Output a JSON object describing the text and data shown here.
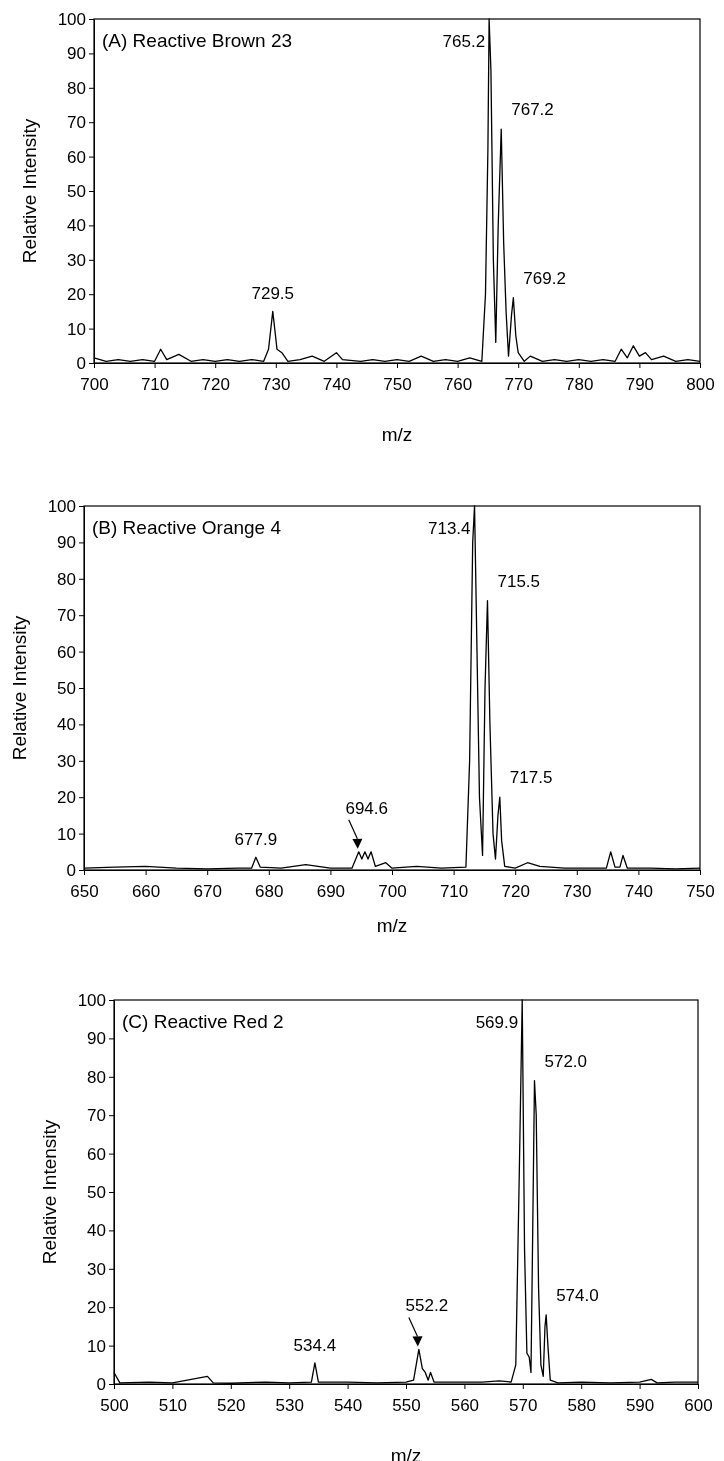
{
  "chart_data": [
    {
      "type": "line",
      "title": "(A) Reactive Brown 23",
      "xlabel": "m/z",
      "ylabel": "Relative Intensity",
      "xlim": [
        700,
        800
      ],
      "xticks": [
        700,
        710,
        720,
        730,
        740,
        750,
        760,
        770,
        780,
        790,
        800
      ],
      "ylim": [
        0,
        100
      ],
      "yticks": [
        0,
        10,
        20,
        30,
        40,
        50,
        60,
        70,
        80,
        90,
        100
      ],
      "series": [
        {
          "color": "#000000",
          "x": [
            700,
            702,
            704,
            706,
            708,
            710,
            711,
            712,
            714,
            716,
            718,
            720,
            722,
            724,
            726,
            728,
            728.8,
            729.5,
            730.2,
            731,
            732,
            734,
            736,
            738,
            740,
            741,
            744,
            746,
            748,
            750,
            752,
            754,
            756,
            758,
            760,
            762,
            764,
            764.6,
            765.0,
            765.2,
            765.5,
            765.9,
            766.3,
            766.7,
            767.2,
            767.6,
            768.0,
            768.4,
            768.9,
            769.2,
            769.6,
            770,
            771,
            772,
            774,
            776,
            778,
            780,
            782,
            784,
            786,
            787,
            788,
            789,
            790,
            791,
            792,
            794,
            796,
            798,
            800
          ],
          "values": [
            1.5,
            0.5,
            1,
            0.5,
            1,
            0.5,
            4,
            1,
            2.5,
            0.5,
            1,
            0.5,
            1,
            0.5,
            1,
            0.5,
            4,
            15,
            4,
            3,
            0.5,
            1,
            2,
            0.5,
            3,
            1,
            0.5,
            1,
            0.5,
            1,
            0.5,
            2,
            0.5,
            1,
            0.5,
            1.5,
            0.5,
            20,
            62,
            100,
            85,
            30,
            6,
            40,
            68,
            35,
            15,
            2,
            14,
            19,
            8,
            3,
            0.5,
            2,
            0.5,
            1,
            0.5,
            1,
            0.5,
            1,
            0.5,
            4,
            1.5,
            5,
            2,
            3,
            1,
            2,
            0.5,
            1,
            0.5
          ]
        }
      ],
      "annotations": [
        {
          "text": "729.5",
          "x": 729.5,
          "y": 15
        },
        {
          "text": "765.2",
          "x": 765.2,
          "y": 100
        },
        {
          "text": "767.2",
          "x": 767.2,
          "y": 68
        },
        {
          "text": "769.2",
          "x": 769.2,
          "y": 19
        }
      ]
    },
    {
      "type": "line",
      "title": "(B) Reactive Orange 4",
      "xlabel": "m/z",
      "ylabel": "Relative Intensity",
      "xlim": [
        650,
        750
      ],
      "xticks": [
        650,
        660,
        670,
        680,
        690,
        700,
        710,
        720,
        730,
        740,
        750
      ],
      "ylim": [
        0,
        100
      ],
      "yticks": [
        0,
        10,
        20,
        30,
        40,
        50,
        60,
        70,
        80,
        90,
        100
      ],
      "series": [
        {
          "color": "#000000",
          "x": [
            650,
            655,
            660,
            665,
            670,
            675,
            677.2,
            677.9,
            678.6,
            682,
            686,
            690,
            693.5,
            694.6,
            695.1,
            695.6,
            696.1,
            696.6,
            697.3,
            699,
            700,
            704,
            708,
            712,
            712.6,
            713.1,
            713.4,
            713.8,
            714.2,
            714.7,
            715.1,
            715.5,
            715.9,
            716.4,
            716.8,
            717.2,
            717.5,
            717.8,
            718.3,
            720,
            722,
            724,
            728,
            732,
            734.8,
            735.5,
            736.2,
            737,
            737.5,
            738.2,
            742,
            746,
            750
          ],
          "values": [
            0.5,
            0.8,
            1,
            0.5,
            0.3,
            0.5,
            0.5,
            3.5,
            0.8,
            0.5,
            1.5,
            0.5,
            0.5,
            5,
            3,
            5,
            3,
            5,
            1,
            2,
            0.5,
            1,
            0.5,
            0.8,
            30,
            90,
            100,
            60,
            20,
            4,
            50,
            74,
            40,
            10,
            3,
            15,
            20,
            8,
            1,
            0.5,
            2,
            1,
            0.5,
            0.5,
            0.5,
            5,
            0.8,
            0.8,
            4,
            0.5,
            0.5,
            0.3,
            0.5
          ]
        }
      ],
      "annotations": [
        {
          "text": "677.9",
          "x": 677.9,
          "y": 3.5
        },
        {
          "text": "694.6",
          "x": 694.6,
          "y": 5
        },
        {
          "text": "713.4",
          "x": 713.4,
          "y": 100
        },
        {
          "text": "715.5",
          "x": 715.5,
          "y": 74
        },
        {
          "text": "717.5",
          "x": 717.5,
          "y": 20
        }
      ]
    },
    {
      "type": "line",
      "title": "(C) Reactive Red 2",
      "xlabel": "m/z",
      "ylabel": "Relative Intensity",
      "xlim": [
        500,
        600
      ],
      "xticks": [
        500,
        510,
        520,
        530,
        540,
        550,
        560,
        570,
        580,
        590,
        600
      ],
      "ylim": [
        0,
        100
      ],
      "yticks": [
        0,
        10,
        20,
        30,
        40,
        50,
        60,
        70,
        80,
        90,
        100
      ],
      "series": [
        {
          "color": "#000000",
          "x": [
            500,
            501,
            506,
            510,
            516,
            517,
            520,
            526,
            530,
            533.8,
            534.4,
            535,
            540,
            545,
            550,
            551.3,
            552.2,
            552.8,
            553.3,
            553.8,
            554.2,
            554.8,
            557,
            563,
            566,
            568,
            568.8,
            569.4,
            569.9,
            570.3,
            570.7,
            571.1,
            571.4,
            571.7,
            572.0,
            572.3,
            572.7,
            573.1,
            573.5,
            573.8,
            574.0,
            574.3,
            574.7,
            576,
            580,
            585,
            590,
            592,
            593,
            596,
            600
          ],
          "values": [
            3,
            0.3,
            0.5,
            0.3,
            2,
            0.3,
            0.2,
            0.5,
            0.3,
            0.5,
            5.5,
            0.5,
            0.5,
            0.3,
            0.5,
            1,
            9,
            4,
            3,
            1,
            3,
            0.5,
            0.5,
            0.5,
            0.8,
            0.5,
            5,
            55,
            100,
            35,
            8,
            7,
            3,
            40,
            79,
            70,
            25,
            5,
            2,
            15,
            18,
            10,
            1,
            0.3,
            0.5,
            0.3,
            0.5,
            1.2,
            0.3,
            0.5,
            0.5
          ]
        }
      ],
      "annotations": [
        {
          "text": "534.4",
          "x": 534.4,
          "y": 5.5
        },
        {
          "text": "552.2",
          "x": 552.2,
          "y": 9
        },
        {
          "text": "569.9",
          "x": 569.9,
          "y": 100
        },
        {
          "text": "572.0",
          "x": 572.0,
          "y": 79
        },
        {
          "text": "574.0",
          "x": 574.0,
          "y": 18
        }
      ]
    }
  ]
}
